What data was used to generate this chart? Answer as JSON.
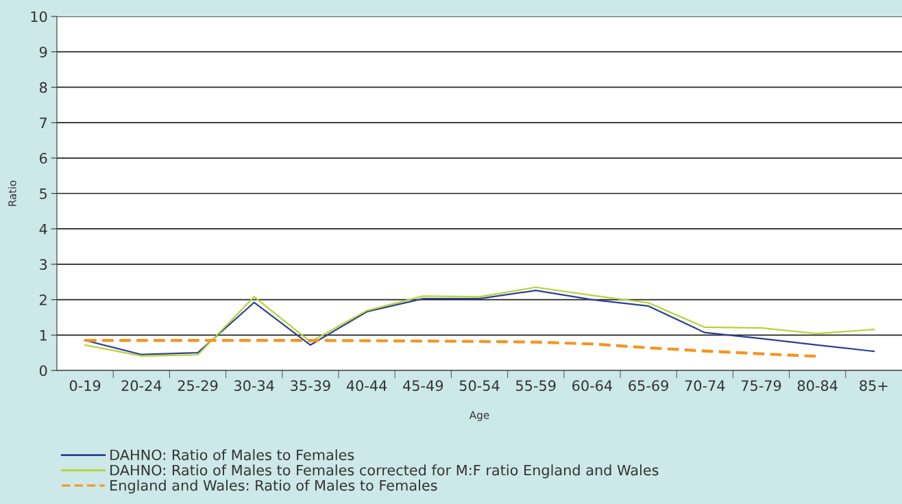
{
  "chart_data": {
    "type": "line",
    "xlabel": "Age",
    "ylabel": "Ratio",
    "categories": [
      "0-19",
      "20-24",
      "25-29",
      "30-34",
      "35-39",
      "40-44",
      "45-49",
      "50-54",
      "55-59",
      "60-64",
      "65-69",
      "70-74",
      "75-79",
      "80-84",
      "85+"
    ],
    "series": [
      {
        "name": "DAHNO: Ratio of Males to Females",
        "color": "#2b3f93",
        "line_style": "solid",
        "values": [
          0.85,
          0.45,
          0.5,
          1.92,
          0.72,
          1.66,
          2.03,
          2.03,
          2.26,
          2.0,
          1.82,
          1.07,
          0.9,
          0.72,
          0.54
        ]
      },
      {
        "name": "DAHNO: Ratio of Males to Females corrected for M:F ratio England and Wales",
        "color": "#b5d334",
        "line_style": "solid",
        "values": [
          0.72,
          0.41,
          0.44,
          2.08,
          0.81,
          1.69,
          2.1,
          2.08,
          2.35,
          2.12,
          1.91,
          1.22,
          1.2,
          1.04,
          1.16
        ]
      },
      {
        "name": "England and Wales: Ratio of Males to Females",
        "color": "#f7941d",
        "line_style": "dashed",
        "values": [
          0.85,
          0.85,
          0.85,
          0.85,
          0.85,
          0.84,
          0.83,
          0.82,
          0.8,
          0.75,
          0.64,
          0.55,
          0.47,
          0.4,
          null
        ]
      }
    ],
    "ylim": [
      0,
      10
    ],
    "yticks": [
      0,
      1,
      2,
      3,
      4,
      5,
      6,
      7,
      8,
      9,
      10
    ],
    "grid": "y",
    "legend": "bottom left",
    "marker": "none"
  }
}
